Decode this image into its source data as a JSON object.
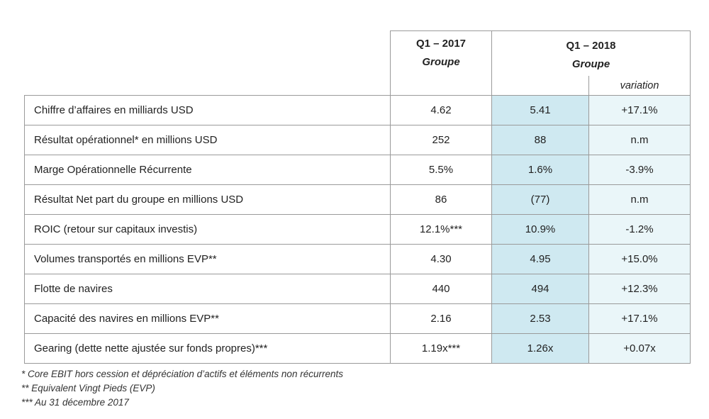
{
  "header": {
    "q1_2017": "Q1 – 2017",
    "q1_2017_sub": "Groupe",
    "q1_2018": "Q1 – 2018",
    "q1_2018_sub": "Groupe",
    "variation": "variation"
  },
  "rows": [
    {
      "label": "Chiffre d’affaires en milliards USD",
      "q1_2017": "4.62",
      "q1_2018": "5.41",
      "variation": "+17.1%"
    },
    {
      "label": "Résultat opérationnel* en millions USD",
      "q1_2017": "252",
      "q1_2018": "88",
      "variation": "n.m"
    },
    {
      "label": "Marge Opérationnelle Récurrente",
      "q1_2017": "5.5%",
      "q1_2018": "1.6%",
      "variation": "-3.9%"
    },
    {
      "label": "Résultat Net part du groupe en millions USD",
      "q1_2017": "86",
      "q1_2018": "(77)",
      "variation": "n.m"
    },
    {
      "label": "ROIC (retour sur capitaux investis)",
      "q1_2017": "12.1%***",
      "q1_2018": "10.9%",
      "variation": "-1.2%"
    },
    {
      "label": "Volumes transportés en millions EVP**",
      "q1_2017": "4.30",
      "q1_2018": "4.95",
      "variation": "+15.0%"
    },
    {
      "label": "Flotte de navires",
      "q1_2017": "440",
      "q1_2018": "494",
      "variation": "+12.3%"
    },
    {
      "label": "Capacité des navires en millions EVP**",
      "q1_2017": "2.16",
      "q1_2018": "2.53",
      "variation": "+17.1%"
    },
    {
      "label": "Gearing (dette nette ajustée sur fonds propres)***",
      "q1_2017": "1.19x***",
      "q1_2018": "1.26x",
      "variation": "+0.07x"
    }
  ],
  "notes": [
    "* Core EBIT hors cession et dépréciation d’actifs et éléments non récurrents",
    "** Equivalent Vingt Pieds (EVP)",
    "*** Au 31 décembre 2017"
  ]
}
